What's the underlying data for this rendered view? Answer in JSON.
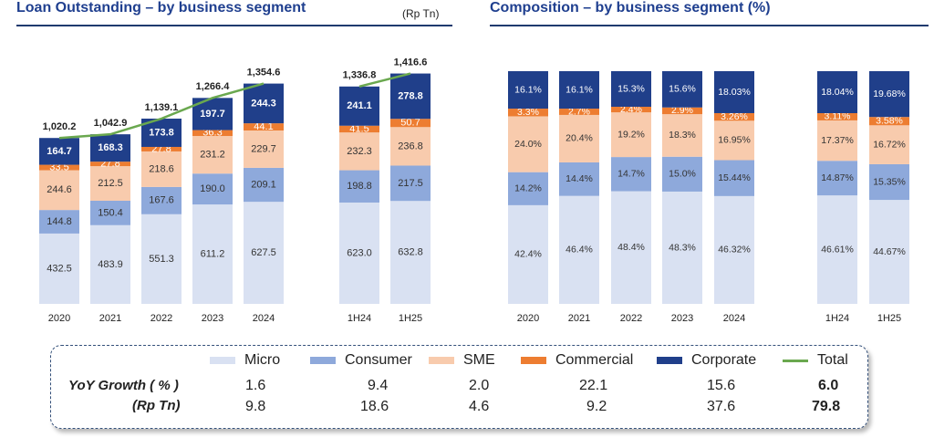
{
  "left": {
    "title": "Loan Outstanding – by business segment",
    "unit": "(Rp Tn)"
  },
  "right": {
    "title": "Composition – by business segment (%)"
  },
  "colors": {
    "Micro": "#d9e1f2",
    "Consumer": "#8ea9db",
    "SME": "#f8cbad",
    "Commercial": "#ed7d31",
    "Corporate": "#203f8a",
    "Total": "#6aa84f"
  },
  "chart_data": [
    {
      "type": "bar",
      "stacked": true,
      "title": "Loan Outstanding – by business segment",
      "ylabel": "Rp Tn",
      "categories": [
        "2020",
        "2021",
        "2022",
        "2023",
        "2024",
        "1H24",
        "1H25"
      ],
      "series": [
        {
          "name": "Micro",
          "values": [
            432.5,
            483.9,
            551.3,
            611.2,
            627.5,
            623.0,
            632.8
          ],
          "labels": [
            "432.5",
            "483.9",
            "551.3",
            "611.2",
            "627.5",
            "623.0",
            "632.8"
          ]
        },
        {
          "name": "Consumer",
          "values": [
            144.8,
            150.4,
            167.6,
            190.0,
            209.1,
            198.8,
            217.5
          ],
          "labels": [
            "144.8",
            "150.4",
            "167.6",
            "190.0",
            "209.1",
            "198.8",
            "217.5"
          ]
        },
        {
          "name": "SME",
          "values": [
            244.6,
            212.5,
            218.6,
            231.2,
            229.7,
            232.3,
            236.8
          ],
          "labels": [
            "244.6",
            "212.5",
            "218.6",
            "231.2",
            "229.7",
            "232.3",
            "236.8"
          ]
        },
        {
          "name": "Commercial",
          "values": [
            33.5,
            27.8,
            27.8,
            36.3,
            44.1,
            41.5,
            50.7
          ],
          "labels": [
            "33.5",
            "27.8",
            "27.8",
            "36.3",
            "44.1",
            "41.5",
            "50.7"
          ]
        },
        {
          "name": "Corporate",
          "values": [
            164.7,
            168.3,
            173.8,
            197.7,
            244.3,
            241.1,
            278.8
          ],
          "labels": [
            "164.7",
            "168.3",
            "173.8",
            "197.7",
            "244.3",
            "241.1",
            "278.8"
          ]
        }
      ],
      "totals": [
        1020.2,
        1042.9,
        1139.1,
        1266.4,
        1354.6,
        1336.8,
        1416.6
      ],
      "total_labels": [
        "1,020.2",
        "1,042.9",
        "1,139.1",
        "1,266.4",
        "1,354.6",
        "1,336.8",
        "1,416.6"
      ]
    },
    {
      "type": "bar",
      "stacked": true,
      "percent": true,
      "title": "Composition – by business segment (%)",
      "categories": [
        "2020",
        "2021",
        "2022",
        "2023",
        "2024",
        "1H24",
        "1H25"
      ],
      "series": [
        {
          "name": "Micro",
          "values": [
            42.4,
            46.4,
            48.4,
            48.3,
            46.32,
            46.61,
            44.67
          ],
          "labels": [
            "42.4%",
            "46.4%",
            "48.4%",
            "48.3%",
            "46.32%",
            "46.61%",
            "44.67%"
          ]
        },
        {
          "name": "Consumer",
          "values": [
            14.2,
            14.4,
            14.7,
            15.0,
            15.44,
            14.87,
            15.35
          ],
          "labels": [
            "14.2%",
            "14.4%",
            "14.7%",
            "15.0%",
            "15.44%",
            "14.87%",
            "15.35%"
          ]
        },
        {
          "name": "SME",
          "values": [
            24.0,
            20.4,
            19.2,
            18.3,
            16.95,
            17.37,
            16.72
          ],
          "labels": [
            "24.0%",
            "20.4%",
            "19.2%",
            "18.3%",
            "16.95%",
            "17.37%",
            "16.72%"
          ]
        },
        {
          "name": "Commercial",
          "values": [
            3.3,
            2.7,
            2.4,
            2.9,
            3.26,
            3.11,
            3.58
          ],
          "labels": [
            "3.3%",
            "2.7%",
            "2.4%",
            "2.9%",
            "3.26%",
            "3.11%",
            "3.58%"
          ]
        },
        {
          "name": "Corporate",
          "values": [
            16.1,
            16.1,
            15.3,
            15.6,
            18.03,
            18.04,
            19.68
          ],
          "labels": [
            "16.1%",
            "16.1%",
            "15.3%",
            "15.6%",
            "18.03%",
            "18.04%",
            "19.68%"
          ]
        }
      ]
    }
  ],
  "legend": [
    "Micro",
    "Consumer",
    "SME",
    "Commercial",
    "Corporate",
    "Total"
  ],
  "yoy": {
    "pct_label": "YoY Growth  ( % )",
    "rp_label": "(Rp Tn)",
    "pct": [
      "1.6",
      "9.4",
      "2.0",
      "22.1",
      "15.6",
      "6.0"
    ],
    "rp": [
      "9.8",
      "18.6",
      "4.6",
      "9.2",
      "37.6",
      "79.8"
    ]
  }
}
